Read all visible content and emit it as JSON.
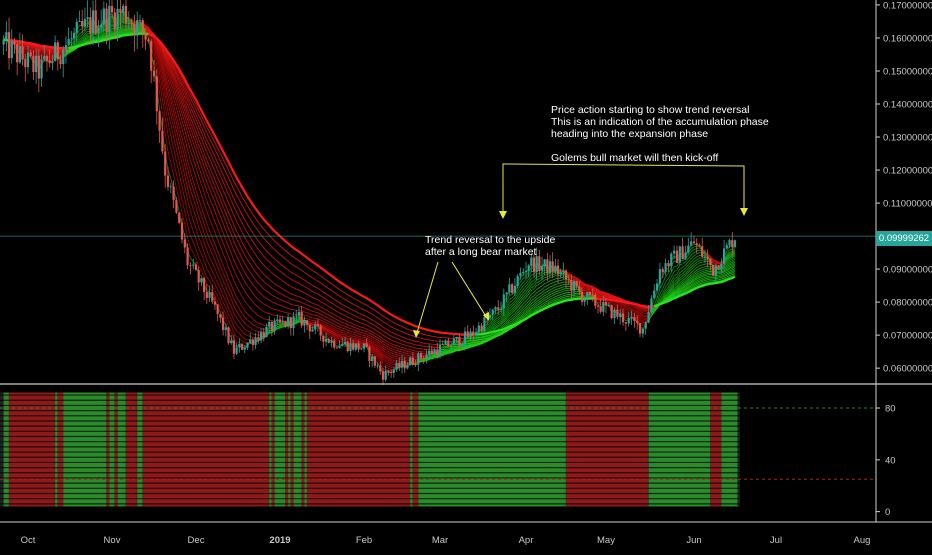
{
  "chart_data": [
    {
      "type": "candlestick",
      "title": "",
      "x_ticks": [
        "Oct",
        "Nov",
        "Dec",
        "2019",
        "Feb",
        "Mar",
        "Apr",
        "May",
        "Jun",
        "Jul",
        "Aug"
      ],
      "y_ticks": [
        "0.17000000",
        "0.16000000",
        "0.15000000",
        "0.14000000",
        "0.13000000",
        "0.12000000",
        "0.11000000",
        "0.10000000",
        "0.09000000",
        "0.08000000",
        "0.07000000",
        "0.06000000"
      ],
      "ylim": [
        0.0555,
        0.1715
      ],
      "last_price_label": "0.09999262",
      "last_price": 0.09999,
      "approx_close_path": [
        {
          "x": "2018-09-22",
          "y": 0.158
        },
        {
          "x": "2018-10-05",
          "y": 0.15
        },
        {
          "x": "2018-10-15",
          "y": 0.158
        },
        {
          "x": "2018-10-25",
          "y": 0.165
        },
        {
          "x": "2018-11-05",
          "y": 0.168
        },
        {
          "x": "2018-11-14",
          "y": 0.16
        },
        {
          "x": "2018-11-20",
          "y": 0.12
        },
        {
          "x": "2018-11-28",
          "y": 0.092
        },
        {
          "x": "2018-12-08",
          "y": 0.078
        },
        {
          "x": "2018-12-15",
          "y": 0.065
        },
        {
          "x": "2018-12-28",
          "y": 0.072
        },
        {
          "x": "2019-01-08",
          "y": 0.075
        },
        {
          "x": "2019-01-20",
          "y": 0.068
        },
        {
          "x": "2019-02-01",
          "y": 0.066
        },
        {
          "x": "2019-02-08",
          "y": 0.058
        },
        {
          "x": "2019-02-18",
          "y": 0.062
        },
        {
          "x": "2019-03-01",
          "y": 0.066
        },
        {
          "x": "2019-03-12",
          "y": 0.07
        },
        {
          "x": "2019-03-22",
          "y": 0.078
        },
        {
          "x": "2019-04-02",
          "y": 0.092
        },
        {
          "x": "2019-04-12",
          "y": 0.09
        },
        {
          "x": "2019-04-22",
          "y": 0.082
        },
        {
          "x": "2019-05-05",
          "y": 0.076
        },
        {
          "x": "2019-05-14",
          "y": 0.072
        },
        {
          "x": "2019-05-20",
          "y": 0.09
        },
        {
          "x": "2019-06-01",
          "y": 0.098
        },
        {
          "x": "2019-06-08",
          "y": 0.09
        },
        {
          "x": "2019-06-16",
          "y": 0.1
        }
      ],
      "ribbon": {
        "fast_color": "#00e600",
        "slow_color": "#ff2a2a"
      }
    },
    {
      "type": "histogram-bands",
      "y_ticks": [
        "80",
        "40",
        "0"
      ],
      "ylim": [
        -8,
        97
      ],
      "levels": [
        80,
        25
      ],
      "level_colors": [
        "#2e7d32",
        "#b71c1c"
      ],
      "bull_color": "#2e9e2e",
      "bear_color": "#a01a1a",
      "shaded_band_color": "#3a3a3a"
    }
  ],
  "annotations": {
    "trend_reversal": "Trend reversal to the upside\nafter a long bear market",
    "price_action": "Price action starting to show trend reversal\nThis is an indication of the accumulation phase\nheading into the expansion phase\n\nGolems bull market will then kick-off"
  },
  "colors": {
    "background": "#000000",
    "arrow": "#e8e83c",
    "axis_text": "#c8c8c8",
    "price_line": "#26a69a"
  }
}
